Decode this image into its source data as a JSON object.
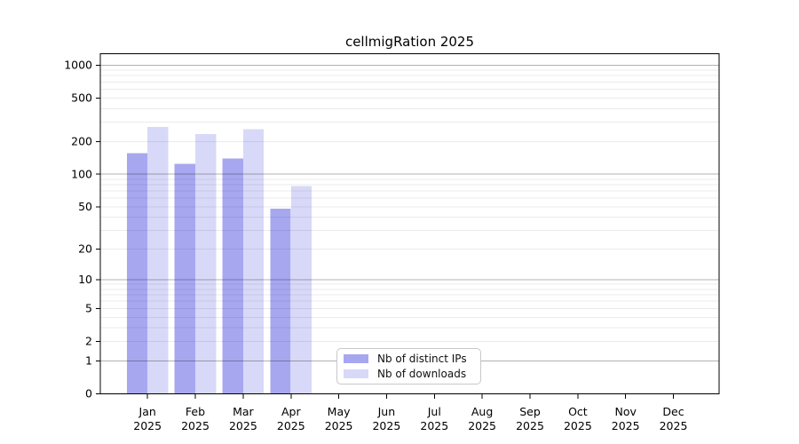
{
  "chart_data": {
    "type": "bar",
    "title": "cellmigRation 2025",
    "xlabel": "",
    "ylabel": "",
    "year": "2025",
    "categories": [
      "Jan",
      "Feb",
      "Mar",
      "Apr",
      "May",
      "Jun",
      "Jul",
      "Aug",
      "Sep",
      "Oct",
      "Nov",
      "Dec"
    ],
    "series": [
      {
        "name": "Nb of distinct IPs",
        "color": "#a7a7f0",
        "values": [
          156,
          125,
          139,
          48,
          0,
          0,
          0,
          0,
          0,
          0,
          0,
          0
        ]
      },
      {
        "name": "Nb of downloads",
        "color": "#d8d8f8",
        "values": [
          272,
          233,
          259,
          78,
          0,
          0,
          0,
          0,
          0,
          0,
          0,
          0
        ]
      }
    ],
    "yscale": "log1p",
    "yticks": [
      0,
      1,
      2,
      5,
      10,
      20,
      50,
      100,
      200,
      500,
      1000
    ],
    "ylim": [
      0,
      1270
    ],
    "grid": "on",
    "legend_position": "bottom-center",
    "colors": {
      "axis": "#000000",
      "major_grid": "rgba(0,0,0,0.30)",
      "minor_grid": "rgba(0,0,0,0.08)",
      "text": "#000000"
    }
  }
}
